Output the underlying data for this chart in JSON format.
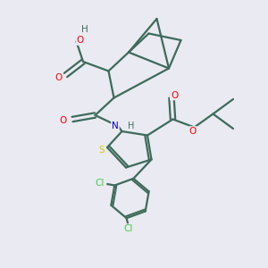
{
  "background_color": "#eaeaf2",
  "bond_color": "#3d6b5a",
  "bond_width": 1.6,
  "atom_colors": {
    "O": "#ff0000",
    "N": "#0000cd",
    "S": "#cccc00",
    "Cl": "#44cc44",
    "C": "#3d6b5a",
    "H": "#3d6b5a"
  },
  "figsize": [
    3.0,
    3.0
  ],
  "dpi": 100
}
